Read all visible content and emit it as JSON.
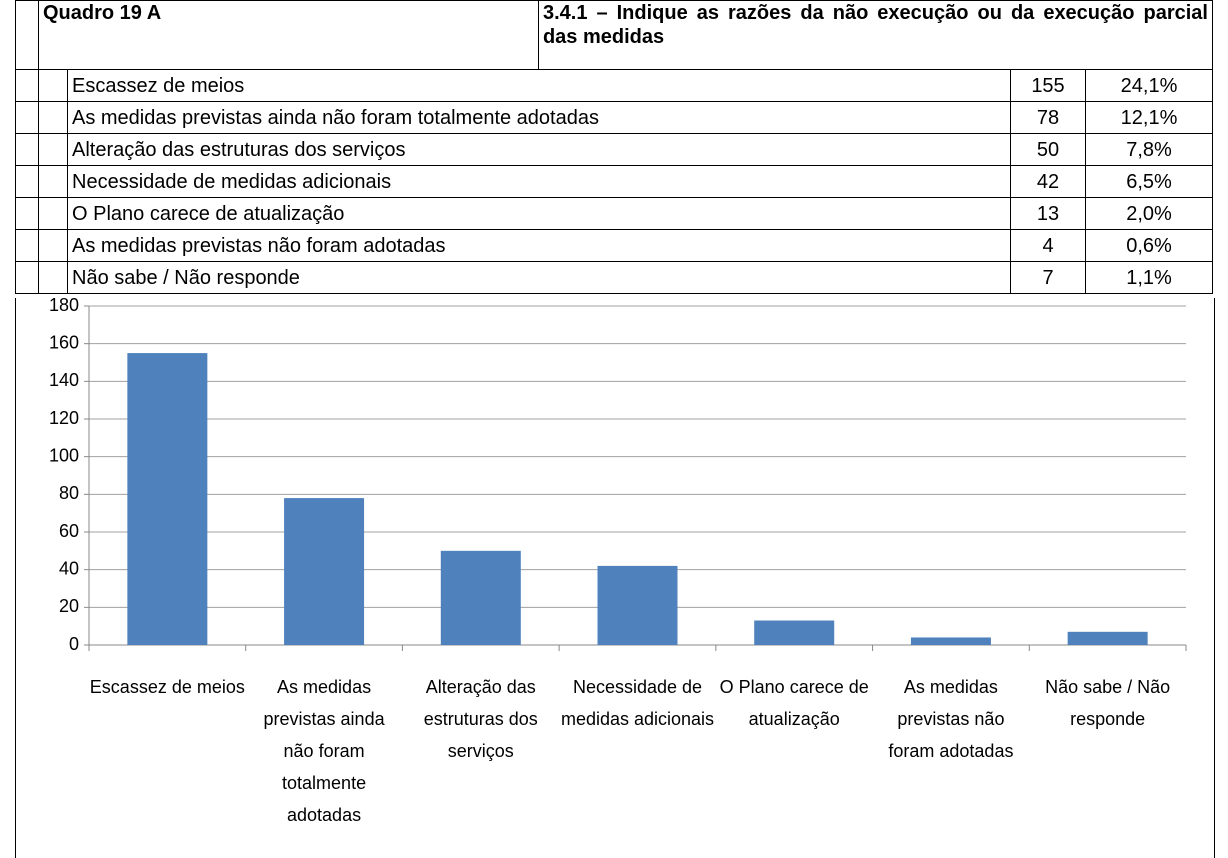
{
  "header": {
    "code": "Quadro 19 A",
    "title": "3.4.1 – Indique as razões da não execução ou da execução parcial das medidas"
  },
  "table": {
    "rows": [
      [
        "Escassez de meios",
        "155",
        "24,1%"
      ],
      [
        "As medidas previstas ainda não foram totalmente adotadas",
        "78",
        "12,1%"
      ],
      [
        "Alteração das estruturas dos serviços",
        "50",
        "7,8%"
      ],
      [
        "Necessidade de medidas adicionais",
        "42",
        "6,5%"
      ],
      [
        "O Plano carece de atualização",
        "13",
        "2,0%"
      ],
      [
        "As medidas previstas não foram adotadas",
        "4",
        "0,6%"
      ],
      [
        "Não sabe / Não responde",
        "7",
        "1,1%"
      ]
    ]
  },
  "chart_data": {
    "type": "bar",
    "categories": [
      "Escassez de meios",
      "As medidas previstas ainda não foram totalmente adotadas",
      "Alteração das estruturas dos serviços",
      "Necessidade de medidas adicionais",
      "O Plano carece de atualização",
      "As medidas previstas não foram adotadas",
      "Não sabe / Não responde"
    ],
    "values": [
      155,
      78,
      50,
      42,
      13,
      4,
      7
    ],
    "color": "#4f81bd",
    "ylim": [
      0,
      180
    ],
    "yticks": [
      0,
      20,
      40,
      60,
      80,
      100,
      120,
      140,
      160,
      180
    ],
    "grid": true
  }
}
